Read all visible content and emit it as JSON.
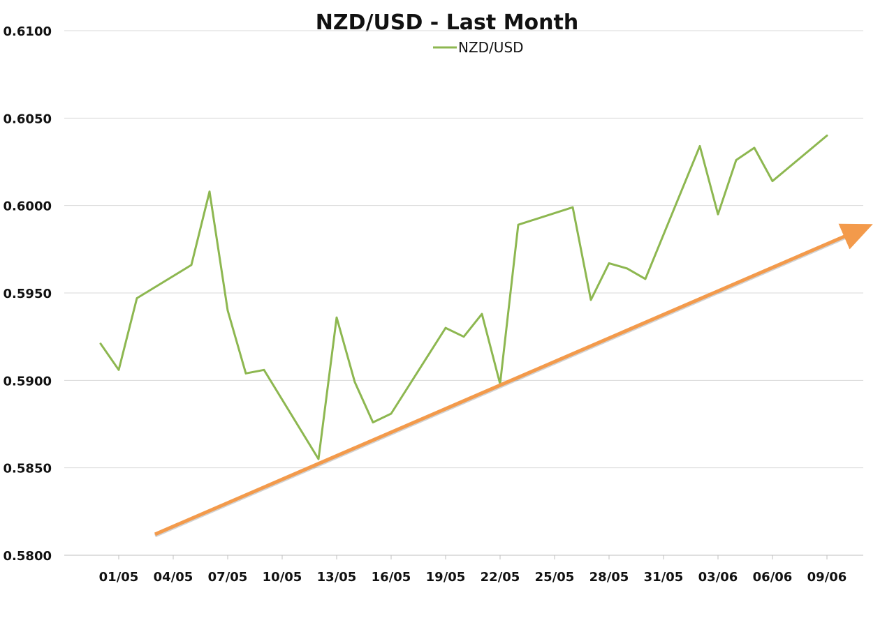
{
  "chart_data": {
    "type": "line",
    "title": "NZD/USD - Last Month",
    "xlabel": "",
    "ylabel": "",
    "ylim": [
      0.58,
      0.61
    ],
    "y_ticks": [
      "0.5800",
      "0.5850",
      "0.5900",
      "0.5950",
      "0.6000",
      "0.6050",
      "0.6100"
    ],
    "x_ticks": [
      "01/05",
      "04/05",
      "07/05",
      "10/05",
      "13/05",
      "16/05",
      "19/05",
      "22/05",
      "25/05",
      "28/05",
      "31/05",
      "03/06",
      "06/06",
      "09/06"
    ],
    "grid": true,
    "legend_position": "top-center",
    "series": [
      {
        "name": "NZD/USD",
        "color": "#8db750",
        "points": [
          {
            "x": "30/04",
            "y": 0.5921
          },
          {
            "x": "01/05",
            "y": 0.5906
          },
          {
            "x": "02/05",
            "y": 0.5947
          },
          {
            "x": "05/05",
            "y": 0.5966
          },
          {
            "x": "06/05",
            "y": 0.6008
          },
          {
            "x": "07/05",
            "y": 0.594
          },
          {
            "x": "08/05",
            "y": 0.5904
          },
          {
            "x": "09/05",
            "y": 0.5906
          },
          {
            "x": "12/05",
            "y": 0.5855
          },
          {
            "x": "13/05",
            "y": 0.5936
          },
          {
            "x": "14/05",
            "y": 0.5899
          },
          {
            "x": "15/05",
            "y": 0.5876
          },
          {
            "x": "16/05",
            "y": 0.5881
          },
          {
            "x": "19/05",
            "y": 0.593
          },
          {
            "x": "20/05",
            "y": 0.5925
          },
          {
            "x": "21/05",
            "y": 0.5938
          },
          {
            "x": "22/05",
            "y": 0.5898
          },
          {
            "x": "23/05",
            "y": 0.5989
          },
          {
            "x": "26/05",
            "y": 0.5999
          },
          {
            "x": "27/05",
            "y": 0.5946
          },
          {
            "x": "28/05",
            "y": 0.5967
          },
          {
            "x": "29/05",
            "y": 0.5964
          },
          {
            "x": "30/05",
            "y": 0.5958
          },
          {
            "x": "02/06",
            "y": 0.6034
          },
          {
            "x": "03/06",
            "y": 0.5995
          },
          {
            "x": "04/06",
            "y": 0.6026
          },
          {
            "x": "05/06",
            "y": 0.6033
          },
          {
            "x": "06/06",
            "y": 0.6014
          },
          {
            "x": "09/06",
            "y": 0.604
          }
        ]
      }
    ],
    "trendline": {
      "color": "#f39a4b",
      "start": {
        "x": "03/05",
        "y": 0.5812
      },
      "end": {
        "x": "11/06",
        "y": 0.5987
      }
    }
  }
}
